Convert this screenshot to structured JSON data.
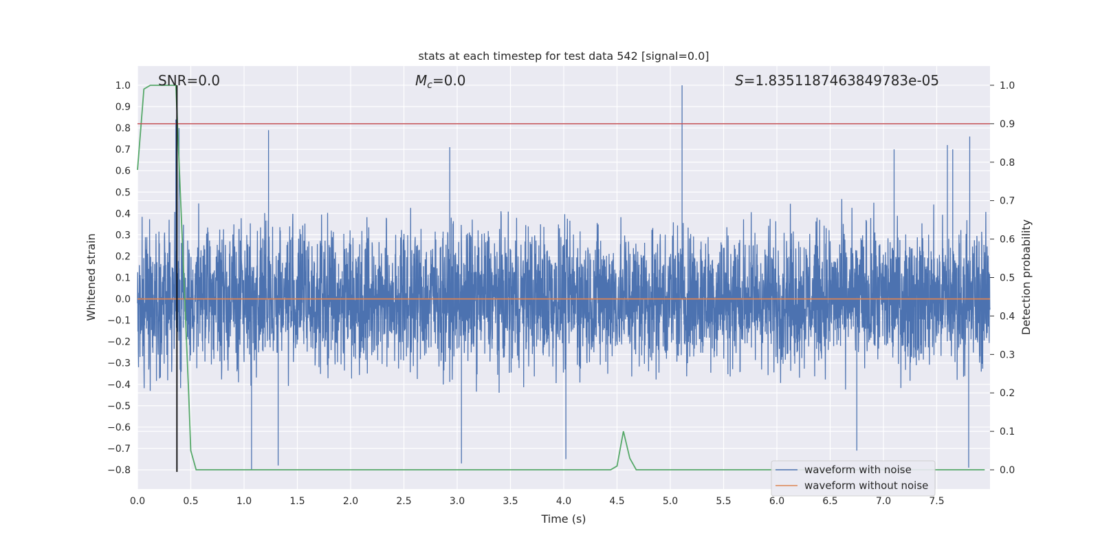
{
  "chart_data": {
    "type": "line",
    "title": "stats at each timestep for test data 542 [signal=0.0]",
    "xlabel": "Time (s)",
    "ylabel": "Whitened strain",
    "y2label": "Detection probability",
    "xlim": [
      0.0,
      8.0
    ],
    "ylim": [
      -0.89,
      1.09
    ],
    "y2lim": [
      -0.05,
      1.05
    ],
    "x_ticks": [
      0.0,
      0.5,
      1.0,
      1.5,
      2.0,
      2.5,
      3.0,
      3.5,
      4.0,
      4.5,
      5.0,
      5.5,
      6.0,
      6.5,
      7.0,
      7.5
    ],
    "x_tick_labels": [
      "0.0",
      "0.5",
      "1.0",
      "1.5",
      "2.0",
      "2.5",
      "3.0",
      "3.5",
      "4.0",
      "4.5",
      "5.0",
      "5.5",
      "6.0",
      "6.5",
      "7.0",
      "7.5"
    ],
    "y_ticks": [
      -0.8,
      -0.7,
      -0.6,
      -0.5,
      -0.4,
      -0.3,
      -0.2,
      -0.1,
      0.0,
      0.1,
      0.2,
      0.3,
      0.4,
      0.5,
      0.6,
      0.7,
      0.8,
      0.9,
      1.0
    ],
    "y_tick_labels": [
      "−0.8",
      "−0.7",
      "−0.6",
      "−0.5",
      "−0.4",
      "−0.3",
      "−0.2",
      "−0.1",
      "0.0",
      "0.1",
      "0.2",
      "0.3",
      "0.4",
      "0.5",
      "0.6",
      "0.7",
      "0.8",
      "0.9",
      "1.0"
    ],
    "y2_ticks": [
      0.0,
      0.1,
      0.2,
      0.3,
      0.4,
      0.5,
      0.6,
      0.7,
      0.8,
      0.9,
      1.0
    ],
    "y2_tick_labels": [
      "0.0",
      "0.1",
      "0.2",
      "0.3",
      "0.4",
      "0.5",
      "0.6",
      "0.7",
      "0.8",
      "0.9",
      "1.0"
    ],
    "grid": true,
    "background": "#eaeaf2",
    "annotations": {
      "snr": "SNR=0.0",
      "mc_symbol": "M",
      "mc_sub": "c",
      "mc_value": "=0.0",
      "s_symbol": "S",
      "s_value": "=1.8351187463849783e-05"
    },
    "legend": {
      "placement": "lower-right",
      "entries": [
        "waveform with noise",
        "waveform without noise"
      ]
    },
    "series": [
      {
        "name": "waveform with noise",
        "color": "#4c72b0",
        "axis": "left",
        "kind": "noise",
        "sample_count": 4096,
        "typical_range": [
          -0.42,
          0.45
        ],
        "peaks": [
          {
            "x": 0.36,
            "y": 0.84
          },
          {
            "x": 0.39,
            "y": 0.8
          },
          {
            "x": 1.23,
            "y": 0.79
          },
          {
            "x": 5.11,
            "y": 1.0
          },
          {
            "x": 7.81,
            "y": 0.76
          },
          {
            "x": 7.6,
            "y": 0.72
          },
          {
            "x": 2.93,
            "y": 0.71
          },
          {
            "x": 7.1,
            "y": 0.7
          },
          {
            "x": 7.65,
            "y": 0.7
          },
          {
            "x": 1.07,
            "y": -0.8
          },
          {
            "x": 1.32,
            "y": -0.78
          },
          {
            "x": 4.02,
            "y": -0.75
          },
          {
            "x": 3.04,
            "y": -0.77
          },
          {
            "x": 7.8,
            "y": -0.79
          },
          {
            "x": 6.75,
            "y": -0.71
          }
        ]
      },
      {
        "name": "waveform without noise",
        "color": "#dd8452",
        "axis": "left",
        "x": [
          0.0,
          8.0
        ],
        "y": [
          0.0,
          0.0
        ]
      },
      {
        "color": "#55a868",
        "axis": "right",
        "x": [
          0.0,
          0.06,
          0.12,
          0.18,
          0.24,
          0.3,
          0.36,
          0.42,
          0.48,
          0.5,
          0.55,
          1.0,
          2.0,
          3.0,
          4.0,
          4.44,
          4.5,
          4.56,
          4.62,
          4.68,
          4.74,
          5.0,
          6.0,
          7.0,
          7.95
        ],
        "y": [
          0.78,
          0.99,
          1.0,
          1.0,
          1.0,
          1.0,
          1.0,
          0.6,
          0.2,
          0.05,
          0.0,
          0.0,
          0.0,
          0.0,
          0.0,
          0.0,
          0.01,
          0.1,
          0.03,
          0.0,
          0.0,
          0.0,
          0.0,
          0.0,
          0.0
        ]
      }
    ],
    "hlines": [
      {
        "axis": "right",
        "y": 0.9,
        "color": "#c44e52"
      }
    ],
    "vlines": [
      {
        "x": 0.37,
        "ymin": -0.81,
        "ymax": 1.0,
        "color": "#000000"
      }
    ]
  }
}
